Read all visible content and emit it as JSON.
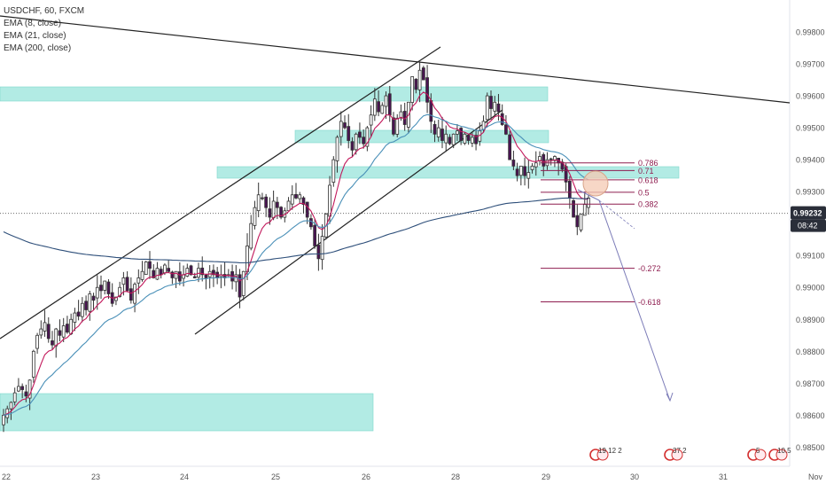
{
  "legend": {
    "symbol": "USDCHF, 60, FXCM",
    "ema8": "EMA (8, close)",
    "ema21": "EMA (21, close)",
    "ema200": "EMA (200, close)"
  },
  "price_badge": {
    "price": "0.99232",
    "countdown": "08:42"
  },
  "fib_levels": [
    {
      "label": "0.786",
      "price": 0.9939
    },
    {
      "label": "0.71",
      "price": 0.99366
    },
    {
      "label": "0.618",
      "price": 0.99337
    },
    {
      "label": "0.5",
      "price": 0.99298
    },
    {
      "label": "0.382",
      "price": 0.99261
    },
    {
      "label": "-0.272",
      "price": 0.9906
    },
    {
      "label": "-0.618",
      "price": 0.98955
    }
  ],
  "colors": {
    "bull": "#ffffff",
    "bear": "#4a1452",
    "ema8": "#c2185b",
    "ema21": "#4a90b8",
    "ema200": "#2e4f7a",
    "zone": "#b2ebe4",
    "fib": "#8e1d4f",
    "projection": "#7c7cb8"
  },
  "chart_data": {
    "type": "candlestick",
    "symbol": "USDCHF",
    "timeframe": "60",
    "ylim": [
      0.9844,
      0.999
    ],
    "yticks": [
      "0.99800",
      "0.99700",
      "0.99600",
      "0.99500",
      "0.99400",
      "0.99300",
      "0.99100",
      "0.99000",
      "0.98900",
      "0.98800",
      "0.98700",
      "0.98600",
      "0.98500"
    ],
    "x_ticks": [
      "22",
      "23",
      "24",
      "25",
      "26",
      "28",
      "29",
      "30",
      "31",
      "Nov"
    ],
    "ohlc_closes": [
      0.986,
      0.9862,
      0.9864,
      0.9867,
      0.9869,
      0.9868,
      0.9866,
      0.9871,
      0.988,
      0.9885,
      0.9887,
      0.9889,
      0.9884,
      0.9882,
      0.9887,
      0.9885,
      0.9888,
      0.9886,
      0.989,
      0.9892,
      0.9891,
      0.9895,
      0.9893,
      0.9898,
      0.9896,
      0.99,
      0.9899,
      0.9902,
      0.9898,
      0.9895,
      0.9897,
      0.99,
      0.9903,
      0.9899,
      0.9896,
      0.9901,
      0.9903,
      0.9905,
      0.9908,
      0.9906,
      0.9903,
      0.9906,
      0.9904,
      0.9907,
      0.9905,
      0.9903,
      0.9905,
      0.9902,
      0.9904,
      0.9906,
      0.9904,
      0.9903,
      0.9906,
      0.9904,
      0.9903,
      0.9905,
      0.9904,
      0.9903,
      0.9904,
      0.9903,
      0.9904,
      0.9902,
      0.9904,
      0.9897,
      0.9905,
      0.9913,
      0.992,
      0.9925,
      0.9929,
      0.9928,
      0.9925,
      0.9922,
      0.9927,
      0.9925,
      0.9922,
      0.9924,
      0.9927,
      0.9929,
      0.9928,
      0.9929,
      0.9926,
      0.9922,
      0.9919,
      0.9913,
      0.9909,
      0.9916,
      0.9923,
      0.9932,
      0.994,
      0.9947,
      0.9952,
      0.995,
      0.9946,
      0.9943,
      0.9948,
      0.9947,
      0.9945,
      0.995,
      0.9954,
      0.9959,
      0.9955,
      0.9957,
      0.996,
      0.9954,
      0.9948,
      0.9953,
      0.9955,
      0.9951,
      0.9958,
      0.9966,
      0.9962,
      0.9968,
      0.9965,
      0.9958,
      0.9952,
      0.9948,
      0.995,
      0.9946,
      0.9948,
      0.9945,
      0.9948,
      0.9949,
      0.9946,
      0.9948,
      0.9946,
      0.9947,
      0.9945,
      0.9949,
      0.9952,
      0.996,
      0.9956,
      0.9958,
      0.9955,
      0.9951,
      0.9948,
      0.994,
      0.9938,
      0.9935,
      0.9938,
      0.9935,
      0.9936,
      0.9938,
      0.9939,
      0.9941,
      0.9938,
      0.994,
      0.994,
      0.9941,
      0.9939,
      0.9937,
      0.9933,
      0.9928,
      0.9922,
      0.9919,
      0.9923,
      0.9926,
      0.9928
    ]
  },
  "calendar_markers": [
    {
      "label": "19 12 2"
    },
    {
      "label": "37 2"
    },
    {
      "label": "5"
    },
    {
      "label": "10.5"
    }
  ]
}
